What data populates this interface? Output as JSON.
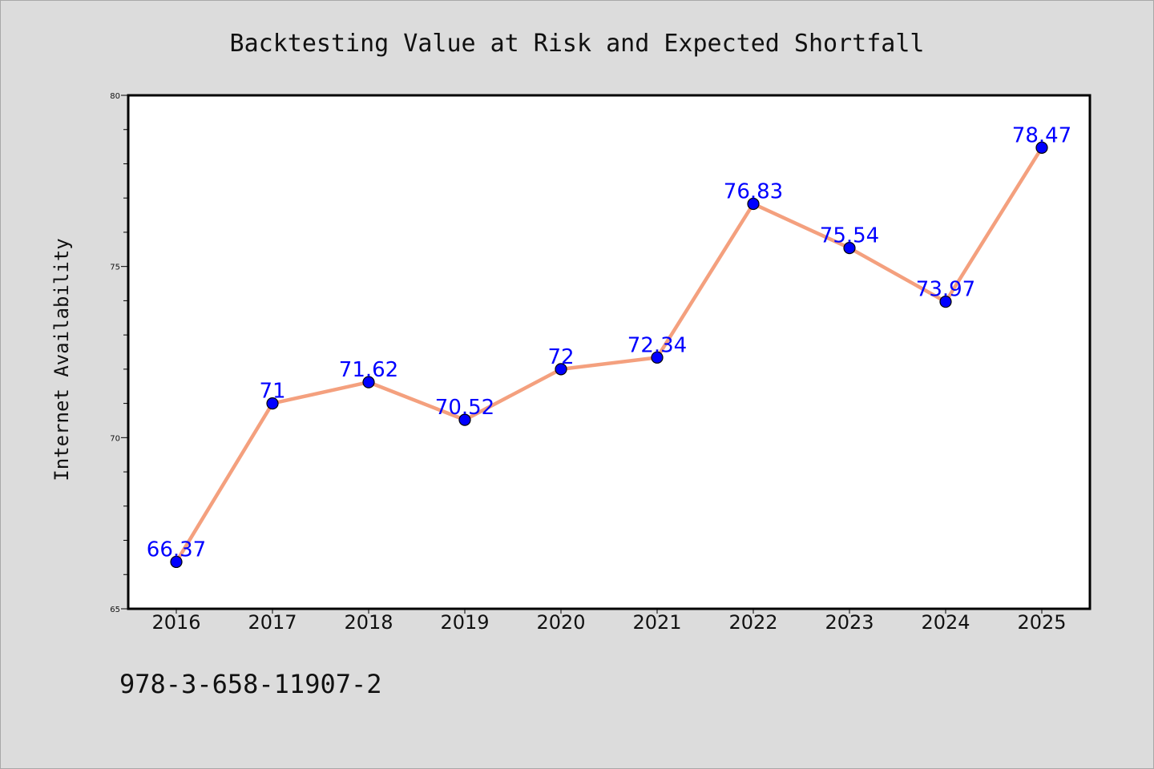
{
  "chart_data": {
    "type": "line",
    "title": "Backtesting Value at Risk and Expected Shortfall",
    "ylabel": "Internet Availability",
    "xlabel": "",
    "categories": [
      "2016",
      "2017",
      "2018",
      "2019",
      "2020",
      "2021",
      "2022",
      "2023",
      "2024",
      "2025"
    ],
    "series": [
      {
        "values": [
          66.37,
          71,
          71.62,
          70.52,
          72,
          72.34,
          76.83,
          75.54,
          73.97,
          78.47
        ],
        "labels": [
          "66.37",
          "71",
          "71.62",
          "70.52",
          "72",
          "72.34",
          "76.83",
          "75.54",
          "73.97",
          "78.47"
        ],
        "line_color": "#f4a07e",
        "marker_color": "#0000ff"
      }
    ],
    "ylim": [
      65,
      80
    ],
    "yticks": [
      "65",
      "70",
      "75",
      "80"
    ],
    "y_minor_step": 1,
    "grid": false,
    "legend": "none"
  },
  "footnote": "978-3-658-11907-2"
}
